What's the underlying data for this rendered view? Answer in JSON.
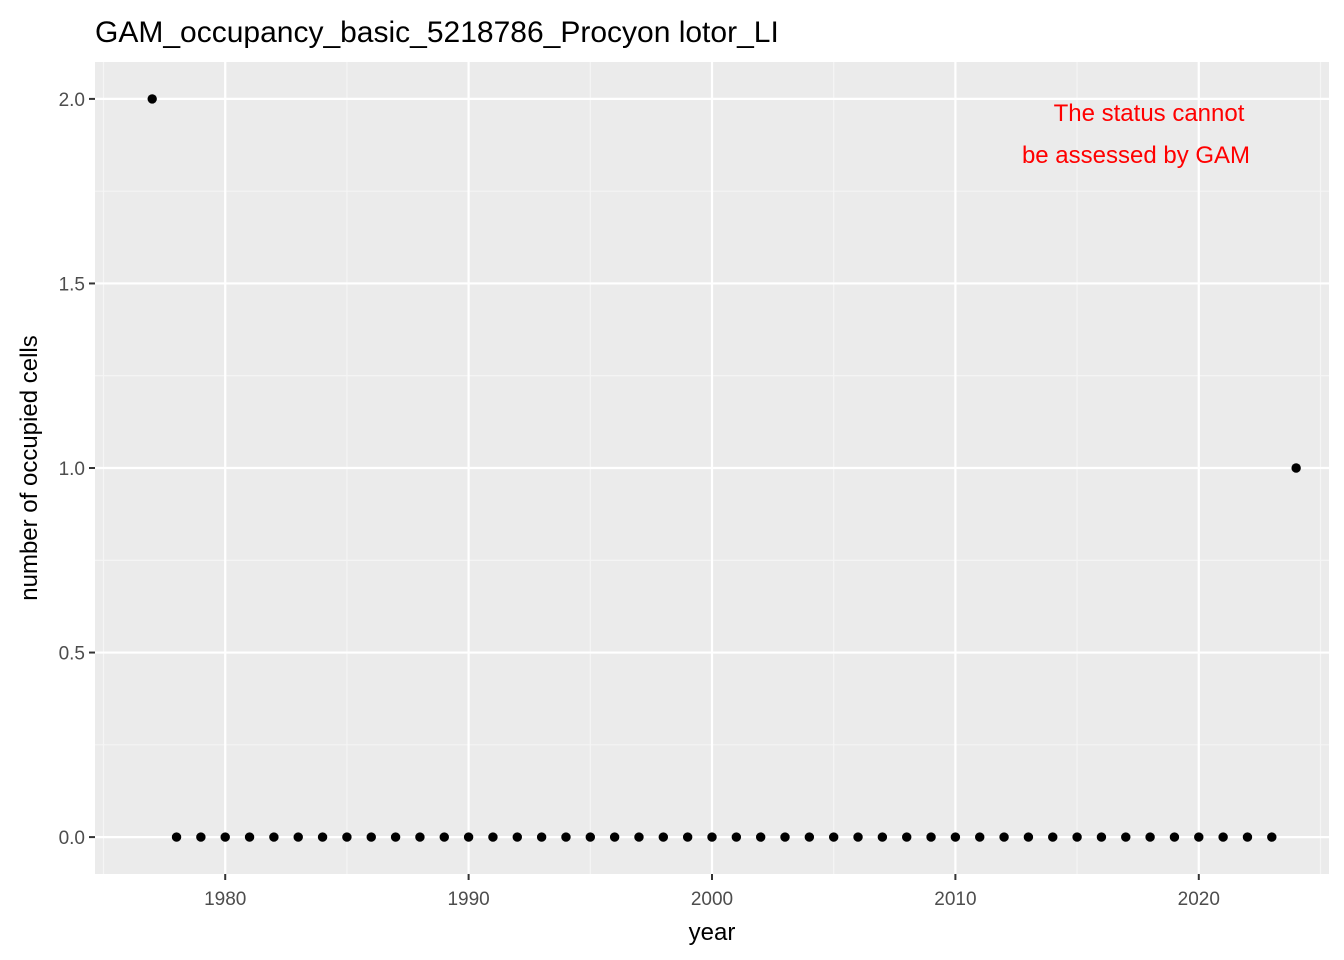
{
  "chart_data": {
    "type": "scatter",
    "title": "GAM_occupancy_basic_5218786_Procyon lotor_LI",
    "xlabel": "year",
    "ylabel": "number of occupied cells",
    "xlim": [
      1974.65,
      2025.35
    ],
    "ylim": [
      -0.1,
      2.1
    ],
    "x_ticks": [
      1980,
      1990,
      2000,
      2010,
      2020
    ],
    "x_tick_labels": [
      "1980",
      "1990",
      "2000",
      "2010",
      "2020"
    ],
    "y_ticks": [
      0,
      0.5,
      1,
      1.5,
      2
    ],
    "y_tick_labels": [
      "0.0",
      "0.5",
      "1.0",
      "1.5",
      "2.0"
    ],
    "grid": true,
    "legend": "none",
    "colors": {
      "panel_background": "#ebebeb",
      "grid_major": "#ffffff",
      "grid_minor": "#f5f5f5",
      "points": "#000000",
      "annotation": "#ff0000"
    },
    "annotation": {
      "lines": [
        "The status cannot",
        "be assessed by GAM"
      ],
      "position": "top-right"
    },
    "series": [
      {
        "x": [
          1977,
          1978,
          1979,
          1980,
          1981,
          1982,
          1983,
          1984,
          1985,
          1986,
          1987,
          1988,
          1989,
          1990,
          1991,
          1992,
          1993,
          1994,
          1995,
          1996,
          1997,
          1998,
          1999,
          2000,
          2001,
          2002,
          2003,
          2004,
          2005,
          2006,
          2007,
          2008,
          2009,
          2010,
          2011,
          2012,
          2013,
          2014,
          2015,
          2016,
          2017,
          2018,
          2019,
          2020,
          2021,
          2022,
          2023,
          2024
        ],
        "y": [
          2,
          0,
          0,
          0,
          0,
          0,
          0,
          0,
          0,
          0,
          0,
          0,
          0,
          0,
          0,
          0,
          0,
          0,
          0,
          0,
          0,
          0,
          0,
          0,
          0,
          0,
          0,
          0,
          0,
          0,
          0,
          0,
          0,
          0,
          0,
          0,
          0,
          0,
          0,
          0,
          0,
          0,
          0,
          0,
          0,
          0,
          0,
          1
        ]
      }
    ]
  }
}
